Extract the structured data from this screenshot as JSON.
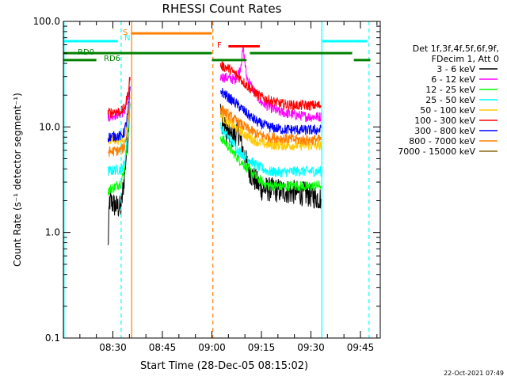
{
  "chart_data": {
    "type": "line",
    "title": "RHESSI Count Rates",
    "xlabel": "Start Time (28-Dec-05 08:15:02)",
    "ylabel": "Count Rate (s⁻¹ detector segment⁻¹)",
    "footer": "22-Oct-2021 07:49",
    "y_scale": "log",
    "ylim": [
      0.1,
      100
    ],
    "y_ticks": [
      "0.1",
      "1.0",
      "10.0",
      "100.0"
    ],
    "xlim_minutes_after_08_15": [
      0,
      96
    ],
    "x_ticks": [
      {
        "label": "08:30",
        "min": 15
      },
      {
        "label": "08:45",
        "min": 30
      },
      {
        "label": "09:00",
        "min": 45
      },
      {
        "label": "09:15",
        "min": 60
      },
      {
        "label": "09:30",
        "min": 75
      },
      {
        "label": "09:45",
        "min": 90
      }
    ],
    "legend": {
      "header": [
        "Det 1f,3f,4f,5f,6f,9f,",
        "FDecim 1, Att 0"
      ],
      "entries": [
        {
          "label": "3 - 6 keV",
          "color": "#000000"
        },
        {
          "label": "6 - 12 keV",
          "color": "#ff00ff"
        },
        {
          "label": "12 - 25 keV",
          "color": "#00ff00"
        },
        {
          "label": "25 - 50 keV",
          "color": "#00ffff"
        },
        {
          "label": "50 - 100 keV",
          "color": "#ffc800"
        },
        {
          "label": "100 - 300 keV",
          "color": "#ff0000"
        },
        {
          "label": "300 - 800 keV",
          "color": "#0000ff"
        },
        {
          "label": "800 - 7000 keV",
          "color": "#ff7f00"
        },
        {
          "label": "7000 - 15000 keV",
          "color": "#8b6914"
        }
      ]
    },
    "segments": {
      "seg1_minutes": [
        13.5,
        20.5
      ],
      "seg2_minutes": [
        47.5,
        78.5
      ]
    },
    "series": [
      {
        "name": "3 - 6 keV",
        "color": "#000000",
        "seg1": [
          [
            13.5,
            0.7
          ],
          [
            14.0,
            2.0
          ],
          [
            15.5,
            1.8
          ],
          [
            17.5,
            1.7
          ],
          [
            18.5,
            3.5
          ],
          [
            19.5,
            8
          ],
          [
            20.3,
            22
          ]
        ],
        "seg2": [
          [
            47.6,
            14
          ],
          [
            48.5,
            10
          ],
          [
            51,
            8
          ],
          [
            53,
            9
          ],
          [
            55,
            5
          ],
          [
            57,
            3.5
          ],
          [
            60,
            2.6
          ],
          [
            65,
            2.5
          ],
          [
            70,
            2.4
          ],
          [
            74,
            2.3
          ],
          [
            78,
            2.1
          ]
        ]
      },
      {
        "name": "6 - 12 keV",
        "color": "#ff00ff",
        "seg1": [
          [
            13.5,
            12.5
          ],
          [
            15.5,
            13
          ],
          [
            17.5,
            13.5
          ],
          [
            18.5,
            14
          ],
          [
            19.5,
            18
          ],
          [
            20.3,
            28
          ]
        ],
        "seg2": [
          [
            47.6,
            30
          ],
          [
            50,
            29
          ],
          [
            52,
            28
          ],
          [
            53.5,
            35
          ],
          [
            54.5,
            55
          ],
          [
            55.5,
            30
          ],
          [
            57,
            24
          ],
          [
            60,
            17
          ],
          [
            65,
            14
          ],
          [
            70,
            13
          ],
          [
            74,
            12.5
          ],
          [
            78,
            12.5
          ]
        ]
      },
      {
        "name": "12 - 25 keV",
        "color": "#00ff00",
        "seg1": [
          [
            13.5,
            2.5
          ],
          [
            15.5,
            2.7
          ],
          [
            17.5,
            3.0
          ],
          [
            18.5,
            4.0
          ],
          [
            19.5,
            8
          ],
          [
            20.3,
            18
          ]
        ],
        "seg2": [
          [
            47.6,
            8
          ],
          [
            50,
            6.5
          ],
          [
            53,
            5
          ],
          [
            56,
            4
          ],
          [
            59,
            3.2
          ],
          [
            62,
            2.8
          ],
          [
            66,
            2.7
          ],
          [
            70,
            2.8
          ],
          [
            74,
            2.7
          ],
          [
            78,
            2.8
          ]
        ]
      },
      {
        "name": "25 - 50 keV",
        "color": "#00ffff",
        "seg1": [
          [
            13.5,
            3.8
          ],
          [
            15.5,
            3.9
          ],
          [
            17.5,
            4.0
          ],
          [
            18.5,
            4.5
          ],
          [
            19.5,
            9
          ],
          [
            20.3,
            18
          ]
        ],
        "seg2": [
          [
            47.6,
            10
          ],
          [
            50,
            8
          ],
          [
            53,
            6
          ],
          [
            56,
            5
          ],
          [
            59,
            4.2
          ],
          [
            62,
            3.8
          ],
          [
            66,
            3.7
          ],
          [
            70,
            3.8
          ],
          [
            74,
            3.8
          ],
          [
            78,
            3.8
          ]
        ]
      },
      {
        "name": "50 - 100 keV",
        "color": "#ffc800",
        "seg1": [
          [
            13.5,
            7.5
          ],
          [
            15.5,
            7.6
          ],
          [
            17.5,
            7.6
          ],
          [
            18.5,
            8
          ],
          [
            19.5,
            12
          ],
          [
            20.3,
            22
          ]
        ],
        "seg2": [
          [
            47.6,
            13
          ],
          [
            50,
            11
          ],
          [
            53,
            9.5
          ],
          [
            56,
            8
          ],
          [
            59,
            7.2
          ],
          [
            62,
            6.8
          ],
          [
            66,
            6.7
          ],
          [
            70,
            6.7
          ],
          [
            74,
            6.7
          ],
          [
            78,
            6.7
          ]
        ]
      },
      {
        "name": "100 - 300 keV",
        "color": "#ff0000",
        "seg1": [
          [
            13.5,
            13.5
          ],
          [
            15.5,
            14
          ],
          [
            17.5,
            14
          ],
          [
            18.5,
            15
          ],
          [
            19.5,
            20
          ],
          [
            20.3,
            32
          ]
        ],
        "seg2": [
          [
            47.6,
            38
          ],
          [
            50,
            36
          ],
          [
            53,
            30
          ],
          [
            56,
            24
          ],
          [
            59,
            20
          ],
          [
            62,
            18
          ],
          [
            66,
            16.5
          ],
          [
            70,
            16
          ],
          [
            74,
            16
          ],
          [
            78,
            16
          ]
        ]
      },
      {
        "name": "300 - 800 keV",
        "color": "#0000ff",
        "seg1": [
          [
            13.5,
            8
          ],
          [
            15.5,
            8.2
          ],
          [
            17.5,
            8.2
          ],
          [
            18.5,
            9
          ],
          [
            19.5,
            13
          ],
          [
            20.3,
            24
          ]
        ],
        "seg2": [
          [
            47.6,
            22
          ],
          [
            50,
            19
          ],
          [
            53,
            16
          ],
          [
            56,
            13
          ],
          [
            59,
            11
          ],
          [
            62,
            10
          ],
          [
            66,
            9.5
          ],
          [
            70,
            9.4
          ],
          [
            74,
            9.3
          ],
          [
            78,
            9.4
          ]
        ]
      },
      {
        "name": "800 - 7000 keV",
        "color": "#ff7f00",
        "seg1": [
          [
            13.5,
            5.8
          ],
          [
            15.5,
            5.9
          ],
          [
            17.5,
            6.0
          ],
          [
            18.5,
            6.5
          ],
          [
            19.5,
            10
          ],
          [
            20.3,
            20
          ]
        ],
        "seg2": [
          [
            47.6,
            15
          ],
          [
            50,
            13
          ],
          [
            53,
            11
          ],
          [
            56,
            9.5
          ],
          [
            59,
            8.5
          ],
          [
            62,
            8
          ],
          [
            66,
            7.8
          ],
          [
            70,
            7.6
          ],
          [
            74,
            7.5
          ],
          [
            78,
            7.6
          ]
        ]
      },
      {
        "name": "7000 - 15000 keV",
        "color": "#8b6914",
        "seg1": [],
        "seg2": []
      }
    ],
    "flags": [
      {
        "label": "",
        "color": "#00ffff",
        "y": 65,
        "ranges": [
          [
            0,
            16.5
          ],
          [
            78.5,
            92
          ]
        ]
      },
      {
        "label": "S",
        "color": "#ff7f00",
        "y": 77,
        "ranges": [
          [
            20.5,
            45
          ]
        ]
      },
      {
        "label": "N",
        "color": "#00ffff",
        "y": 0,
        "ranges": []
      },
      {
        "label": "RD0",
        "color": "#008000",
        "y": 50,
        "ranges": [
          [
            0,
            45
          ],
          [
            56.5,
            87.5
          ]
        ]
      },
      {
        "label": "RD6",
        "color": "#008000",
        "y": 43,
        "ranges": [
          [
            0,
            10
          ],
          [
            45,
            55.5
          ],
          [
            88,
            93
          ]
        ]
      },
      {
        "label": "F",
        "color": "#ff0000",
        "y": 58,
        "ranges": [
          [
            50,
            59.5
          ]
        ]
      }
    ],
    "vlines": [
      {
        "min": 0.2,
        "color": "#00ffff",
        "dashed": false
      },
      {
        "min": 17.5,
        "color": "#00ffff",
        "dashed": true
      },
      {
        "min": 20.7,
        "color": "#ff7f00",
        "dashed": false
      },
      {
        "min": 45.3,
        "color": "#ff7f00",
        "dashed": true
      },
      {
        "min": 78.3,
        "color": "#00ffff",
        "dashed": false
      },
      {
        "min": 92.6,
        "color": "#00ffff",
        "dashed": true
      }
    ]
  }
}
